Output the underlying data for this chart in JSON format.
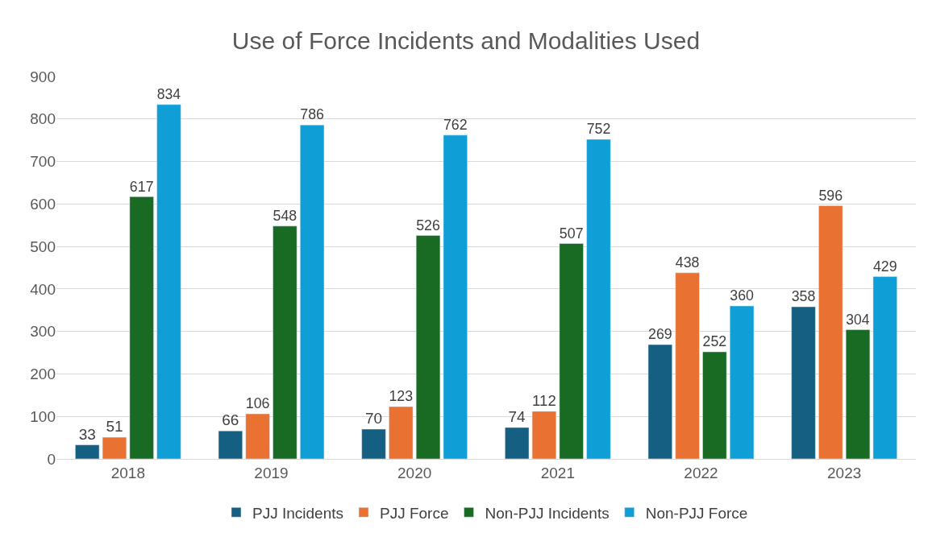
{
  "chart_data": {
    "type": "bar",
    "title": "Use of Force Incidents and Modalities Used",
    "categories": [
      "2018",
      "2019",
      "2020",
      "2021",
      "2022",
      "2023"
    ],
    "series": [
      {
        "name": "PJJ Incidents",
        "color": "#156082",
        "values": [
          33,
          66,
          70,
          74,
          269,
          358
        ]
      },
      {
        "name": "PJJ Force",
        "color": "#e97132",
        "values": [
          51,
          106,
          123,
          112,
          438,
          596
        ]
      },
      {
        "name": "Non-PJJ Incidents",
        "color": "#196b24",
        "values": [
          617,
          548,
          526,
          507,
          252,
          304
        ]
      },
      {
        "name": "Non-PJJ Force",
        "color": "#0f9ed5",
        "values": [
          834,
          786,
          762,
          752,
          360,
          429
        ]
      }
    ],
    "ylim": [
      0,
      900
    ],
    "yticks": [
      0,
      100,
      200,
      300,
      400,
      500,
      600,
      700,
      800,
      900
    ],
    "grid": "y",
    "legend": "bottom",
    "data_labels": true
  }
}
